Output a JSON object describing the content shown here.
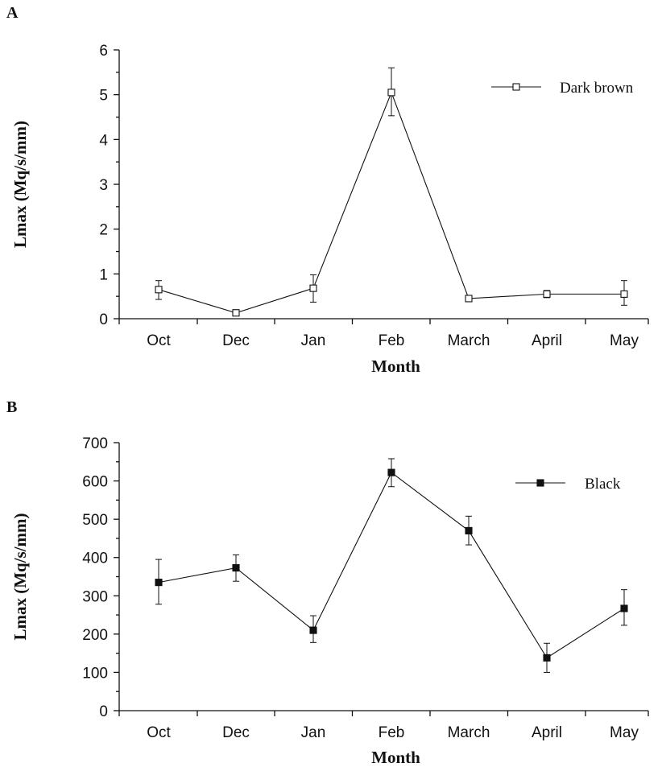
{
  "chart_data": [
    {
      "panel": "A",
      "type": "line",
      "categories": [
        "Oct",
        "Dec",
        "Jan",
        "Feb",
        "March",
        "April",
        "May"
      ],
      "series": [
        {
          "name": "Dark brown",
          "marker": "open-square",
          "color": "#111111",
          "values": [
            0.65,
            0.13,
            0.68,
            5.05,
            0.45,
            0.55,
            0.55
          ],
          "err_low": [
            0.43,
            0.08,
            0.37,
            4.53,
            0.38,
            0.47,
            0.3
          ],
          "err_high": [
            0.85,
            0.2,
            0.98,
            5.6,
            0.52,
            0.63,
            0.85
          ]
        }
      ],
      "xlabel": "Month",
      "ylabel": "Lmax (Mq/s/mm)",
      "ylim": [
        0,
        6
      ],
      "yticks": [
        "0",
        "1",
        "2",
        "3",
        "4",
        "5",
        "6"
      ],
      "legend": "top-right",
      "grid": false
    },
    {
      "panel": "B",
      "type": "line",
      "categories": [
        "Oct",
        "Dec",
        "Jan",
        "Feb",
        "March",
        "April",
        "May"
      ],
      "series": [
        {
          "name": "Black",
          "marker": "filled-square",
          "color": "#111111",
          "values": [
            335,
            373,
            210,
            622,
            470,
            138,
            267
          ],
          "err_low": [
            278,
            338,
            178,
            585,
            433,
            100,
            223
          ],
          "err_high": [
            395,
            407,
            248,
            658,
            508,
            176,
            316
          ]
        }
      ],
      "xlabel": "Month",
      "ylabel": "Lmax (Mq/s/mm)",
      "ylim": [
        0,
        700
      ],
      "yticks": [
        "0",
        "100",
        "200",
        "300",
        "400",
        "500",
        "600",
        "700"
      ],
      "legend": "top-right",
      "grid": false
    }
  ]
}
